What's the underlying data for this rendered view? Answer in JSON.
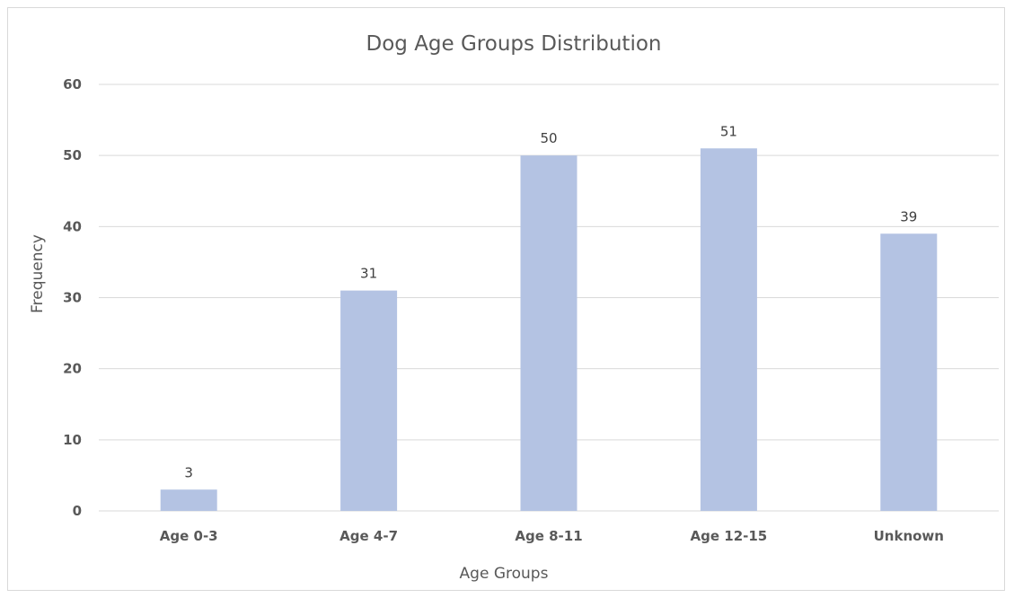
{
  "chart_data": {
    "type": "bar",
    "title": "Dog Age Groups Distribution",
    "xlabel": "Age Groups",
    "ylabel": "Frequency",
    "categories": [
      "Age 0-3",
      "Age 4-7",
      "Age 8-11",
      "Age 12-15",
      "Unknown"
    ],
    "values": [
      3,
      31,
      50,
      51,
      39
    ],
    "ylim": [
      0,
      60
    ],
    "yticks": [
      0,
      10,
      20,
      30,
      40,
      50,
      60
    ],
    "grid": true,
    "legend": "none",
    "bar_color": "#b4c3e3",
    "data_labels": [
      "3",
      "31",
      "50",
      "51",
      "39"
    ]
  }
}
